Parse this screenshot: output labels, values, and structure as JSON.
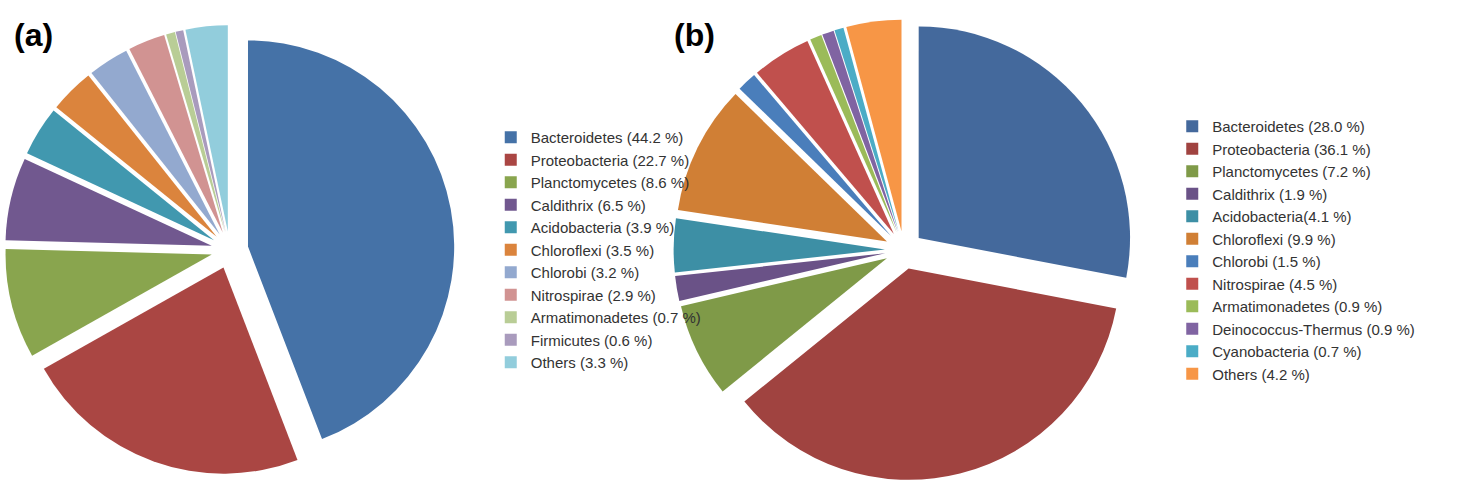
{
  "chart_data": [
    {
      "type": "pie",
      "title": "(a)",
      "legend": "right",
      "categories": [
        "Bacteroidetes (44.2 %)",
        "Proteobacteria (22.7 %)",
        "Planctomycetes (8.6 %)",
        "Caldithrix (6.5 %)",
        "Acidobacteria (3.9 %)",
        "Chloroflexi (3.5 %)",
        "Chlorobi (3.2 %)",
        "Nitrospirae (2.9 %)",
        "Armatimonadetes (0.7 %)",
        "Firmicutes (0.6 %)",
        "Others (3.3 %)"
      ],
      "values": [
        44.2,
        22.7,
        8.6,
        6.5,
        3.9,
        3.5,
        3.2,
        2.9,
        0.7,
        0.6,
        3.3
      ],
      "colors": [
        "#4572a7",
        "#aa4643",
        "#89a54e",
        "#71588f",
        "#4198af",
        "#db843d",
        "#93a9cf",
        "#d19392",
        "#b9cd96",
        "#a99bbd",
        "#92cddc"
      ]
    },
    {
      "type": "pie",
      "title": "(b)",
      "legend": "right",
      "categories": [
        "Bacteroidetes (28.0 %)",
        "Proteobacteria (36.1 %)",
        "Planctomycetes (7.2 %)",
        "Caldithrix (1.9 %)",
        "Acidobacteria(4.1 %)",
        "Chloroflexi (9.9 %)",
        "Chlorobi (1.5 %)",
        "Nitrospirae (4.5 %)",
        "Armatimonadetes (0.9 %)",
        "Deinococcus-Thermus (0.9 %)",
        "Cyanobacteria (0.7 %)",
        "Others (4.2 %)"
      ],
      "values": [
        28.0,
        36.1,
        7.2,
        1.9,
        4.1,
        9.9,
        1.5,
        4.5,
        0.9,
        0.9,
        0.7,
        4.2
      ],
      "colors": [
        "#44699c",
        "#a04340",
        "#7f9a48",
        "#6a5287",
        "#3d8fa5",
        "#d07f35",
        "#4a7ebb",
        "#c0504d",
        "#9bbb59",
        "#8064a2",
        "#4bacc6",
        "#f79646"
      ]
    }
  ]
}
